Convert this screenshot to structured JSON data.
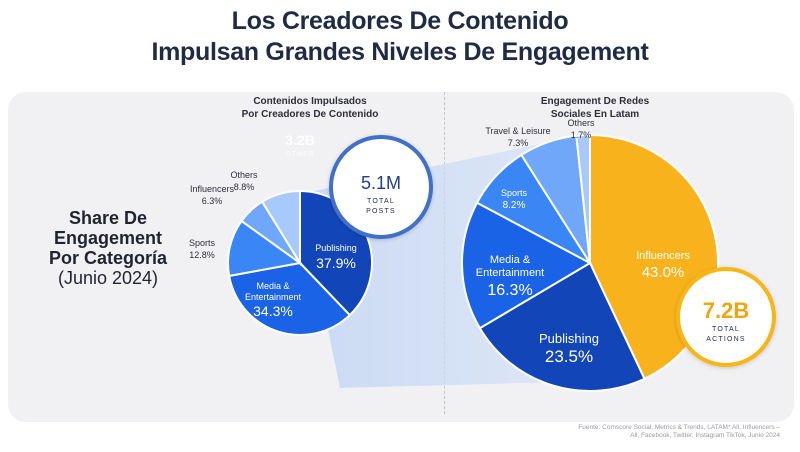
{
  "title": {
    "line1": "Los Creadores De Contenido",
    "line2": "Impulsan Grandes Niveles De Engagement"
  },
  "share_label": {
    "line1": "Share De",
    "line2": "Engagement",
    "line3": "Por Categoría",
    "line4": "(Junio 2024)"
  },
  "left_header": {
    "line1": "Contenidos Impulsados",
    "line2": "Por Creadores De Contenido"
  },
  "right_header": {
    "line1": "Engagement De Redes",
    "line2": "Sociales En Latam"
  },
  "posts_callout": {
    "value": "5.1M",
    "label1": "TOTAL",
    "label2": "POSTS"
  },
  "faded_callout": {
    "value": "3.2B",
    "label": "OTHER"
  },
  "actions_callout": {
    "value": "7.2B",
    "label1": "TOTAL",
    "label2": "ACTIONS"
  },
  "source": {
    "line1": "Fuente: Comscore Social,  Metrics & Trends, LATAM* All, Influencers –",
    "line2": "All, Facebook, Twitter, Instagram TikTok, Junio 2024"
  },
  "chart_data": [
    {
      "type": "pie",
      "title": "Contenidos Impulsados Por Creadores De Contenido",
      "slices": [
        {
          "name": "Publishing",
          "value": 37.9,
          "label": "37.9%",
          "color": "#1246b8"
        },
        {
          "name": "Media & Entertainment",
          "value": 34.3,
          "label": "34.3%",
          "color": "#1b63e6"
        },
        {
          "name": "Sports",
          "value": 12.8,
          "label": "12.8%",
          "color": "#3a86f5"
        },
        {
          "name": "Influencers",
          "value": 6.3,
          "label": "6.3%",
          "color": "#71a7f8"
        },
        {
          "name": "Others",
          "value": 8.8,
          "label": "8.8%",
          "color": "#a8c9fb"
        }
      ]
    },
    {
      "type": "pie",
      "title": "Engagement De Redes Sociales En Latam",
      "slices": [
        {
          "name": "Influencers",
          "value": 43.0,
          "label": "43.0%",
          "color": "#f8b31c"
        },
        {
          "name": "Publishing",
          "value": 23.5,
          "label": "23.5%",
          "color": "#1246b8"
        },
        {
          "name": "Media & Entertainment",
          "value": 16.3,
          "label": "16.3%",
          "color": "#1b63e6"
        },
        {
          "name": "Sports",
          "value": 8.2,
          "label": "8.2%",
          "color": "#3a86f5"
        },
        {
          "name": "Travel & Leisure",
          "value": 7.3,
          "label": "7.3%",
          "color": "#71a7f8"
        },
        {
          "name": "Others",
          "value": 1.7,
          "label": "1.7%",
          "color": "#a8c9fb"
        }
      ]
    }
  ]
}
